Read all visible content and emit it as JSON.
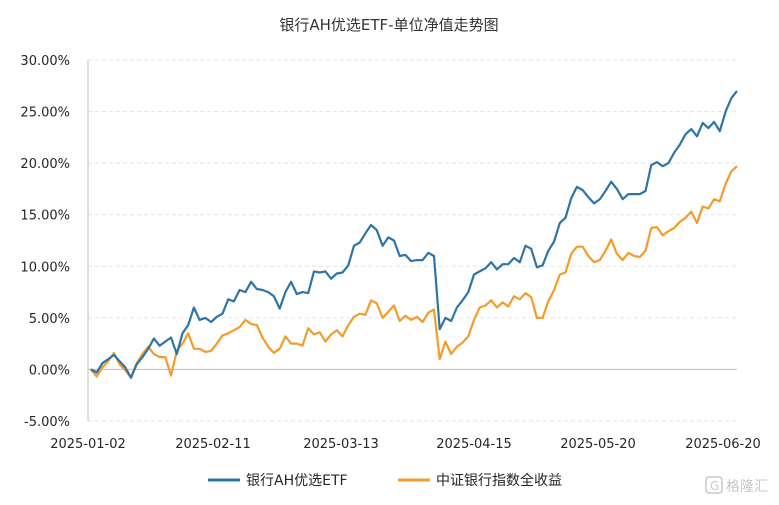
{
  "chart_data": {
    "type": "line",
    "title": "银行AH优选ETF-单位净值走势图",
    "xlabel": "",
    "ylabel": "",
    "x_tick_labels": [
      "2025-01-02",
      "2025-02-11",
      "2025-03-13",
      "2025-04-15",
      "2025-05-20",
      "2025-06-20"
    ],
    "y_tick_labels": [
      "30.00%",
      "25.00%",
      "20.00%",
      "15.00%",
      "10.00%",
      "5.00%",
      "0.00%",
      "-5.00%"
    ],
    "ylim": [
      -5,
      30
    ],
    "y_unit": "%",
    "grid": "horizontal-dashed",
    "legend_position": "bottom",
    "series": [
      {
        "name": "银行AH优选ETF",
        "color": "#2e75a6",
        "values": [
          0.0,
          -0.3,
          0.6,
          1.0,
          1.4,
          0.8,
          0.2,
          -0.8,
          0.5,
          1.2,
          2.0,
          3.0,
          2.3,
          2.7,
          3.1,
          1.5,
          3.5,
          4.3,
          6.0,
          4.8,
          5.0,
          4.6,
          5.1,
          5.4,
          6.8,
          6.6,
          7.7,
          7.5,
          8.5,
          7.8,
          7.7,
          7.5,
          7.1,
          5.9,
          7.5,
          8.5,
          7.3,
          7.5,
          7.4,
          9.5,
          9.4,
          9.5,
          8.8,
          9.3,
          9.4,
          10.1,
          12.0,
          12.3,
          13.2,
          14.0,
          13.5,
          12.0,
          12.8,
          12.5,
          11.0,
          11.1,
          10.5,
          10.6,
          10.6,
          11.3,
          11.0,
          3.9,
          5.0,
          4.7,
          6.0,
          6.7,
          7.5,
          9.2,
          9.5,
          9.8,
          10.4,
          9.7,
          10.2,
          10.2,
          10.8,
          10.4,
          12.0,
          11.7,
          9.9,
          10.1,
          11.5,
          12.4,
          14.2,
          14.7,
          16.6,
          17.7,
          17.4,
          16.7,
          16.1,
          16.5,
          17.3,
          18.2,
          17.5,
          16.5,
          17.0,
          17.0,
          17.0,
          17.3,
          19.8,
          20.1,
          19.7,
          20.0,
          21.0,
          21.8,
          22.8,
          23.3,
          22.6,
          23.9,
          23.4,
          24.0,
          23.1,
          25.0,
          26.3,
          27.0
        ]
      },
      {
        "name": "中证银行指数全收益",
        "color": "#f39c2c",
        "values": [
          0.0,
          -0.7,
          0.2,
          0.8,
          1.6,
          0.5,
          -0.1,
          -0.8,
          0.6,
          1.5,
          2.2,
          1.5,
          1.2,
          1.2,
          -0.6,
          1.8,
          2.5,
          3.5,
          2.0,
          2.0,
          1.7,
          1.8,
          2.5,
          3.3,
          3.5,
          3.8,
          4.1,
          4.8,
          4.4,
          4.3,
          3.1,
          2.2,
          1.6,
          2.0,
          3.2,
          2.5,
          2.5,
          2.3,
          4.0,
          3.4,
          3.6,
          2.7,
          3.4,
          3.8,
          3.2,
          4.3,
          5.1,
          5.4,
          5.3,
          6.7,
          6.4,
          5.0,
          5.6,
          6.2,
          4.7,
          5.2,
          4.8,
          5.1,
          4.6,
          5.5,
          5.8,
          1.0,
          2.7,
          1.5,
          2.2,
          2.6,
          3.2,
          4.8,
          6.0,
          6.2,
          6.7,
          6.0,
          6.5,
          6.1,
          7.1,
          6.8,
          7.4,
          7.0,
          5.0,
          5.0,
          6.6,
          7.7,
          9.2,
          9.4,
          11.2,
          11.9,
          11.9,
          11.0,
          10.4,
          10.6,
          11.5,
          12.6,
          11.2,
          10.6,
          11.3,
          11.0,
          10.9,
          11.5,
          13.7,
          13.8,
          13.0,
          13.4,
          13.7,
          14.3,
          14.7,
          15.3,
          14.2,
          15.8,
          15.6,
          16.5,
          16.3,
          18.0,
          19.2,
          19.7
        ]
      }
    ]
  },
  "watermark": {
    "text": "格隆汇"
  }
}
